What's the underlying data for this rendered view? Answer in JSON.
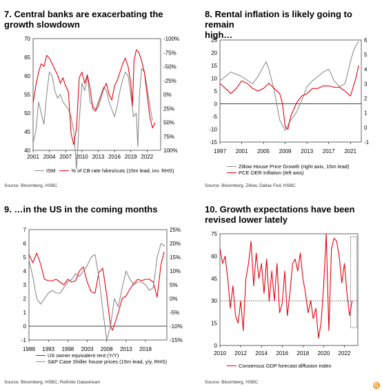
{
  "colors": {
    "primary": "#e8000d",
    "secondary": "#8c8c8c"
  },
  "icon": {
    "corner": "zoom-lens-icon"
  },
  "panels": [
    {
      "title_line1": "7. Central banks are exacerbating the",
      "title_line2": "growth slowdown",
      "source": "Source: Bloomberg, HSBC",
      "legend": [
        {
          "label": "ISM",
          "color": "gray"
        },
        {
          "label": "% of CB rate hikes/cuts (15m lead, inv. RHS)",
          "color": "red"
        }
      ]
    },
    {
      "title_line1": "8. Rental inflation is likely going to remain",
      "title_line2": "high…",
      "source": "Source: Bloomberg, Zillow, Dallas Fed, HSBC",
      "legend": [
        {
          "label": "Zillow House Price Growth (right axis, 15m lead)",
          "color": "gray"
        },
        {
          "label": "PCE OER Inflation (left axis)",
          "color": "red"
        }
      ]
    },
    {
      "title_line1": "9. …in the US in the coming months",
      "title_line2": "",
      "source": "Source: Bloomberg, HSBC, Refinitiv Datastream",
      "legend": [
        {
          "label": "US owner equivalent rent (Y/Y)",
          "color": "red"
        },
        {
          "label": "S&P Case Shiller house prices (15m lead, y/y, RHS)",
          "color": "gray"
        }
      ]
    },
    {
      "title_line1": "10. Growth expectations have been",
      "title_line2": "revised lower lately",
      "source": "Source: Bloomberg, HSBC",
      "legend": [
        {
          "label": "Consensus GDP forecast diffusion index",
          "color": "red"
        }
      ]
    }
  ],
  "chart_data": [
    {
      "type": "line",
      "x_ticks": [
        "2001",
        "2004",
        "2007",
        "2010",
        "2013",
        "2016",
        "2019",
        "2022"
      ],
      "xlim": [
        2001,
        2024.5
      ],
      "ylim": [
        40,
        70
      ],
      "yticks": [
        "70",
        "65",
        "60",
        "55",
        "50",
        "45",
        "40"
      ],
      "y2lim": [
        -100,
        100
      ],
      "y2_inverted": true,
      "y2ticks": [
        "-100%",
        "-75%",
        "-50%",
        "-25%",
        "0%",
        "25%",
        "50%",
        "75%",
        "100%"
      ],
      "series": [
        {
          "name": "ISM",
          "axis": "left",
          "color": "gray",
          "x": [
            2001,
            2001.5,
            2002,
            2002.5,
            2003,
            2003.5,
            2004,
            2004.5,
            2005,
            2005.5,
            2006,
            2006.5,
            2007,
            2007.5,
            2008,
            2008.5,
            2009,
            2009.5,
            2010,
            2010.5,
            2011,
            2011.5,
            2012,
            2012.5,
            2013,
            2013.5,
            2014,
            2014.5,
            2015,
            2015.5,
            2016,
            2016.5,
            2017,
            2017.5,
            2018,
            2018.5,
            2019,
            2019.5,
            2020,
            2020.3,
            2020.6,
            2021,
            2021.5,
            2022,
            2022.5,
            2023
          ],
          "y": [
            42,
            45,
            53,
            50,
            47,
            55,
            61,
            60,
            56,
            54,
            55,
            53,
            52,
            51,
            49,
            45,
            35,
            48,
            58,
            56,
            60,
            53,
            52,
            51,
            53,
            55,
            57,
            56,
            53,
            51,
            49,
            52,
            56,
            59,
            61,
            60,
            55,
            49,
            50,
            41,
            55,
            62,
            61,
            57,
            52,
            48
          ]
        },
        {
          "name": "% of CB rate hikes/cuts",
          "axis": "right",
          "color": "red",
          "x": [
            2001,
            2001.5,
            2002,
            2002.5,
            2003,
            2003.5,
            2004,
            2004.5,
            2005,
            2005.5,
            2006,
            2006.5,
            2007,
            2007.5,
            2008,
            2008.5,
            2009,
            2009.5,
            2010,
            2010.5,
            2011,
            2011.5,
            2012,
            2012.5,
            2013,
            2013.5,
            2014,
            2014.5,
            2015,
            2015.5,
            2016,
            2016.5,
            2017,
            2017.5,
            2018,
            2018.5,
            2019,
            2019.3,
            2019.6,
            2020,
            2020.5,
            2021,
            2021.5,
            2022,
            2022.5,
            2023,
            2023.5
          ],
          "y": [
            15,
            -15,
            -40,
            -55,
            -50,
            -70,
            -65,
            -55,
            -45,
            -35,
            -20,
            -30,
            -15,
            -5,
            70,
            90,
            60,
            -30,
            -40,
            -20,
            -35,
            -10,
            25,
            30,
            20,
            5,
            -10,
            -20,
            0,
            10,
            -15,
            -25,
            -40,
            -55,
            -65,
            -50,
            -20,
            20,
            -60,
            -80,
            -75,
            -60,
            -40,
            0,
            40,
            60,
            50
          ]
        }
      ]
    },
    {
      "type": "line",
      "x_ticks": [
        "1997",
        "2001",
        "2005",
        "2009",
        "2013",
        "2017",
        "2021"
      ],
      "xlim": [
        1997,
        2023
      ],
      "ylim": [
        -15,
        25
      ],
      "yticks": [
        "25",
        "20",
        "15",
        "10",
        "5",
        "0",
        "-5",
        "-10",
        "-15"
      ],
      "y2lim": [
        -1,
        6
      ],
      "y2ticks": [
        "6",
        "5",
        "4",
        "3",
        "2",
        "1",
        "0",
        "-1"
      ],
      "series": [
        {
          "name": "Zillow House Price Growth",
          "axis": "right",
          "color": "gray",
          "x": [
            1997,
            1999,
            2001,
            2003,
            2004,
            2005,
            2005.5,
            2006,
            2007,
            2008,
            2009,
            2010,
            2011,
            2012,
            2013,
            2014,
            2015,
            2016,
            2017,
            2018,
            2019,
            2020,
            2021,
            2021.5,
            2022,
            2022.5
          ],
          "y": [
            3.2,
            3.8,
            3.5,
            3.0,
            3.5,
            4.2,
            4.5,
            4.0,
            2.5,
            0.5,
            -0.2,
            0.5,
            1.0,
            1.8,
            2.8,
            3.2,
            3.5,
            3.8,
            4.0,
            3.2,
            2.8,
            3.0,
            4.5,
            5.2,
            5.6,
            5.9
          ]
        },
        {
          "name": "PCE OER Inflation",
          "axis": "left",
          "color": "red",
          "x": [
            1997,
            1998,
            1999,
            2000,
            2001,
            2002,
            2003,
            2004,
            2005,
            2006,
            2007,
            2008,
            2008.5,
            2009,
            2009.5,
            2010,
            2011,
            2012,
            2013,
            2014,
            2015,
            2016,
            2017,
            2018,
            2019,
            2020,
            2021,
            2022,
            2022.5
          ],
          "y": [
            8,
            6,
            4,
            6,
            9,
            8,
            6,
            5,
            6,
            8,
            6,
            4,
            0,
            -9,
            -10,
            -5,
            0,
            3,
            4,
            6,
            6,
            7,
            7,
            6.5,
            6.5,
            5,
            3,
            10,
            15
          ]
        }
      ]
    },
    {
      "type": "line",
      "x_ticks": [
        "1988",
        "1993",
        "1998",
        "2003",
        "2008",
        "2013",
        "2018"
      ],
      "xlim": [
        1988,
        2023.5
      ],
      "ylim": [
        -1,
        7
      ],
      "yticks": [
        "7",
        "6",
        "5",
        "4",
        "3",
        "2",
        "1",
        "0",
        "-1"
      ],
      "y2lim": [
        -15,
        25
      ],
      "y2ticks": [
        "25%",
        "20%",
        "15%",
        "10%",
        "5%",
        "0%",
        "-5%",
        "-10%",
        "-15%"
      ],
      "series": [
        {
          "name": "US owner equivalent rent (Y/Y)",
          "axis": "left",
          "color": "red",
          "x": [
            1988,
            1989,
            1990,
            1991,
            1992,
            1993,
            1994,
            1995,
            1996,
            1997,
            1998,
            1999,
            2000,
            2001,
            2002,
            2003,
            2004,
            2005,
            2006,
            2007,
            2008,
            2009,
            2009.5,
            2010,
            2011,
            2012,
            2013,
            2014,
            2015,
            2016,
            2017,
            2018,
            2019,
            2020,
            2021,
            2022,
            2022.8
          ],
          "y": [
            5.2,
            4.6,
            5.3,
            4.5,
            3.4,
            3.3,
            3.3,
            3.4,
            3.2,
            3.0,
            3.4,
            3.2,
            3.3,
            4.0,
            4.3,
            3.2,
            2.5,
            2.4,
            3.9,
            4.2,
            2.3,
            0.0,
            -0.3,
            0.1,
            1.0,
            2.0,
            2.2,
            2.7,
            3.1,
            3.4,
            3.3,
            3.4,
            3.4,
            3.2,
            2.1,
            4.5,
            5.4
          ]
        },
        {
          "name": "S&P Case Shiller house prices",
          "axis": "right",
          "color": "gray",
          "x": [
            1988,
            1989,
            1990,
            1991,
            1992,
            1993,
            1994,
            1995,
            1996,
            1997,
            1998,
            1999,
            2000,
            2001,
            2002,
            2003,
            2004,
            2005,
            2006,
            2007,
            2008,
            2009,
            2010,
            2011,
            2012,
            2013,
            2014,
            2015,
            2016,
            2017,
            2018,
            2019,
            2020,
            2021,
            2022,
            2023
          ],
          "y": [
            14,
            8,
            0,
            -2,
            0,
            2,
            3,
            2,
            2,
            4,
            6,
            7,
            9,
            8,
            10,
            12,
            15,
            16,
            8,
            -4,
            -15,
            -10,
            0,
            -3,
            4,
            10,
            7,
            5,
            6,
            6,
            5,
            3,
            4,
            15,
            20,
            19
          ]
        }
      ]
    },
    {
      "type": "line",
      "x_ticks": [
        "2010",
        "2012",
        "2014",
        "2016",
        "2018",
        "2020",
        "2022"
      ],
      "xlim": [
        2010,
        2023.3
      ],
      "ylim": [
        0,
        75
      ],
      "yticks": [
        "75",
        "60",
        "45",
        "30",
        "15",
        "0"
      ],
      "reference_line": 30,
      "highlight_box": [
        2022.6,
        2023.2,
        12,
        73
      ],
      "series": [
        {
          "name": "Consensus GDP forecast diffusion index",
          "axis": "left",
          "color": "red",
          "x": [
            2010,
            2010.25,
            2010.5,
            2010.75,
            2011,
            2011.25,
            2011.5,
            2011.75,
            2012,
            2012.25,
            2012.5,
            2012.75,
            2013,
            2013.25,
            2013.5,
            2013.75,
            2014,
            2014.25,
            2014.5,
            2014.75,
            2015,
            2015.25,
            2015.5,
            2015.75,
            2016,
            2016.25,
            2016.5,
            2016.75,
            2017,
            2017.25,
            2017.5,
            2017.75,
            2018,
            2018.25,
            2018.5,
            2018.75,
            2019,
            2019.25,
            2019.5,
            2019.75,
            2020,
            2020.25,
            2020.5,
            2020.75,
            2021,
            2021.25,
            2021.5,
            2021.75,
            2022,
            2022.25,
            2022.5,
            2022.75
          ],
          "y": [
            65,
            55,
            60,
            45,
            25,
            40,
            20,
            15,
            30,
            10,
            45,
            55,
            70,
            40,
            62,
            45,
            55,
            35,
            58,
            30,
            50,
            30,
            55,
            22,
            28,
            50,
            20,
            35,
            55,
            58,
            50,
            62,
            45,
            35,
            22,
            30,
            18,
            25,
            5,
            15,
            40,
            75,
            10,
            65,
            72,
            70,
            60,
            42,
            55,
            35,
            20,
            30
          ]
        }
      ]
    }
  ]
}
